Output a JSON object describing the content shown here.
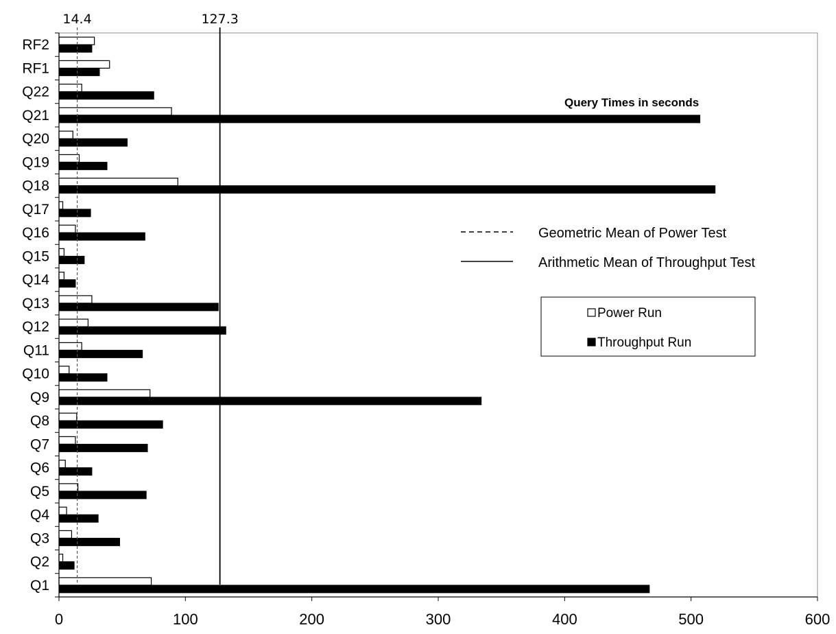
{
  "chart_data": {
    "type": "bar",
    "orientation": "horizontal",
    "categories": [
      "Q1",
      "Q2",
      "Q3",
      "Q4",
      "Q5",
      "Q6",
      "Q7",
      "Q8",
      "Q9",
      "Q10",
      "Q11",
      "Q12",
      "Q13",
      "Q14",
      "Q15",
      "Q16",
      "Q17",
      "Q18",
      "Q19",
      "Q20",
      "Q21",
      "Q22",
      "RF1",
      "RF2"
    ],
    "series": [
      {
        "name": "Power Run",
        "color": "#ffffff",
        "values": [
          73,
          3,
          10,
          6,
          15,
          5,
          13,
          14,
          72,
          8,
          18,
          23,
          26,
          4,
          4,
          13,
          3,
          94,
          16,
          11,
          89,
          18,
          40,
          28
        ]
      },
      {
        "name": "Throughput Run",
        "color": "#000000",
        "values": [
          467,
          12,
          48,
          31,
          69,
          26,
          70,
          82,
          334,
          38,
          66,
          132,
          126,
          13,
          20,
          68,
          25,
          519,
          38,
          54,
          507,
          75,
          32,
          26
        ]
      }
    ],
    "reference_lines": [
      {
        "name": "Geometric Mean of Power Test",
        "value": 14.4,
        "label": "14.4",
        "style": "dashed"
      },
      {
        "name": "Arithmetic Mean of Throughput Test",
        "value": 127.3,
        "label": "127.3",
        "style": "solid"
      }
    ],
    "annotation": "Query Times in seconds",
    "x_ticks": [
      "0",
      "100",
      "200",
      "300",
      "400",
      "500",
      "600"
    ],
    "xlim": [
      0,
      600
    ],
    "title": "",
    "xlabel": "",
    "ylabel": "",
    "grid": false,
    "legend_placement": "right"
  }
}
